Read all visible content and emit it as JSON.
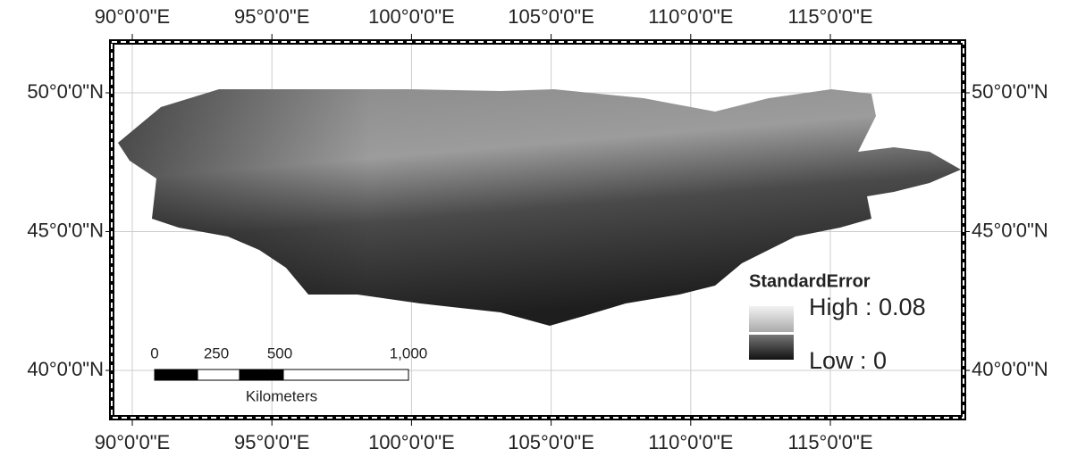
{
  "map": {
    "lon_labels": [
      "90°0'0\"E",
      "95°0'0\"E",
      "100°0'0\"E",
      "105°0'0\"E",
      "110°0'0\"E",
      "115°0'0\"E"
    ],
    "lat_labels": [
      "50°0'0\"N",
      "45°0'0\"N",
      "40°0'0\"N"
    ],
    "legend": {
      "title": "StandardError",
      "high": "High : 0.08",
      "low": "Low : 0"
    },
    "scale_bar": {
      "labels": [
        "0",
        "250",
        "500",
        "1,000"
      ],
      "unit": "Kilometers"
    }
  }
}
